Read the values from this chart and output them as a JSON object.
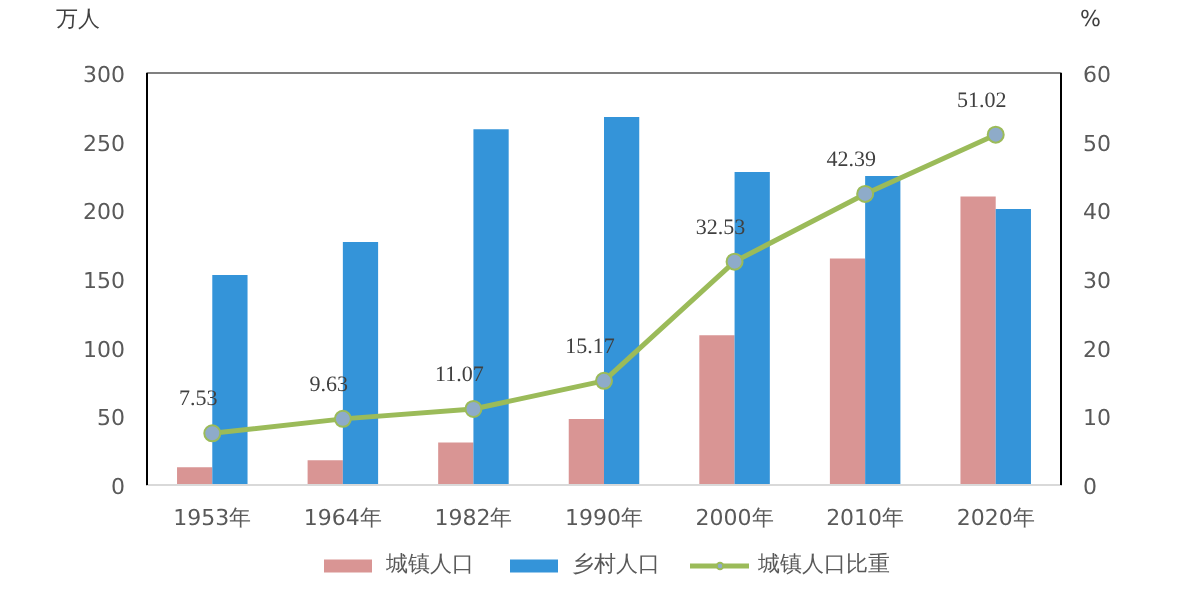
{
  "chart_data": {
    "type": "bar",
    "ylabel": "万人",
    "y2label": "%",
    "categories": [
      "1953年",
      "1964年",
      "1982年",
      "1990年",
      "2000年",
      "2010年",
      "2020年"
    ],
    "series": [
      {
        "name": "城镇人口",
        "color": "#d99594",
        "values": [
          13,
          18,
          31,
          48,
          109,
          165,
          210
        ]
      },
      {
        "name": "乡村人口",
        "color": "#3494d9",
        "values": [
          153,
          177,
          259,
          268,
          228,
          225,
          201
        ]
      },
      {
        "name": "城镇人口比重",
        "type": "line",
        "axis": "y2",
        "color": "#9bbb59",
        "marker": "circle",
        "values": [
          7.53,
          9.63,
          11.07,
          15.17,
          32.53,
          42.39,
          51.02
        ],
        "data_labels": true
      }
    ],
    "ylim": [
      0,
      300
    ],
    "yticks": [
      0,
      50,
      100,
      150,
      200,
      250,
      300
    ],
    "y2lim": [
      0,
      60
    ],
    "y2ticks": [
      0,
      10,
      20,
      30,
      40,
      50,
      60
    ],
    "legend": "bottom",
    "grid": false
  }
}
